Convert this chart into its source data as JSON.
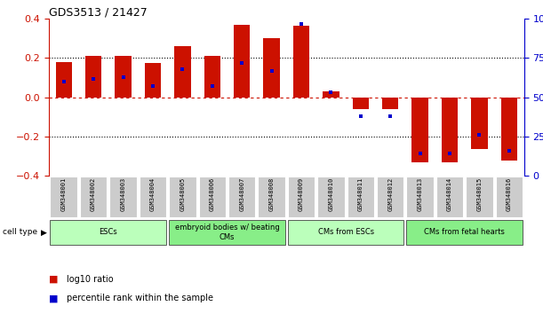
{
  "title": "GDS3513 / 21427",
  "samples": [
    "GSM348001",
    "GSM348002",
    "GSM348003",
    "GSM348004",
    "GSM348005",
    "GSM348006",
    "GSM348007",
    "GSM348008",
    "GSM348009",
    "GSM348010",
    "GSM348011",
    "GSM348012",
    "GSM348013",
    "GSM348014",
    "GSM348015",
    "GSM348016"
  ],
  "log10_ratio": [
    0.18,
    0.21,
    0.21,
    0.175,
    0.26,
    0.21,
    0.37,
    0.3,
    0.365,
    0.03,
    -0.06,
    -0.06,
    -0.33,
    -0.33,
    -0.265,
    -0.32
  ],
  "percentile_rank": [
    60,
    62,
    63,
    57,
    68,
    57,
    72,
    67,
    97,
    53,
    38,
    38,
    14,
    14,
    26,
    16
  ],
  "bar_color": "#cc1100",
  "dot_color": "#0000cc",
  "cell_type_groups": [
    {
      "label": "ESCs",
      "start": 0,
      "end": 3,
      "color": "#bbffbb"
    },
    {
      "label": "embryoid bodies w/ beating\nCMs",
      "start": 4,
      "end": 7,
      "color": "#88ee88"
    },
    {
      "label": "CMs from ESCs",
      "start": 8,
      "end": 11,
      "color": "#bbffbb"
    },
    {
      "label": "CMs from fetal hearts",
      "start": 12,
      "end": 15,
      "color": "#88ee88"
    }
  ],
  "ylim_left": [
    -0.4,
    0.4
  ],
  "ylim_right": [
    0,
    100
  ],
  "yticks_left": [
    -0.4,
    -0.2,
    0.0,
    0.2,
    0.4
  ],
  "yticks_right": [
    0,
    25,
    50,
    75,
    100
  ],
  "legend_items": [
    {
      "label": "log10 ratio",
      "color": "#cc1100"
    },
    {
      "label": "percentile rank within the sample",
      "color": "#0000cc"
    }
  ],
  "cell_type_label": "cell type"
}
